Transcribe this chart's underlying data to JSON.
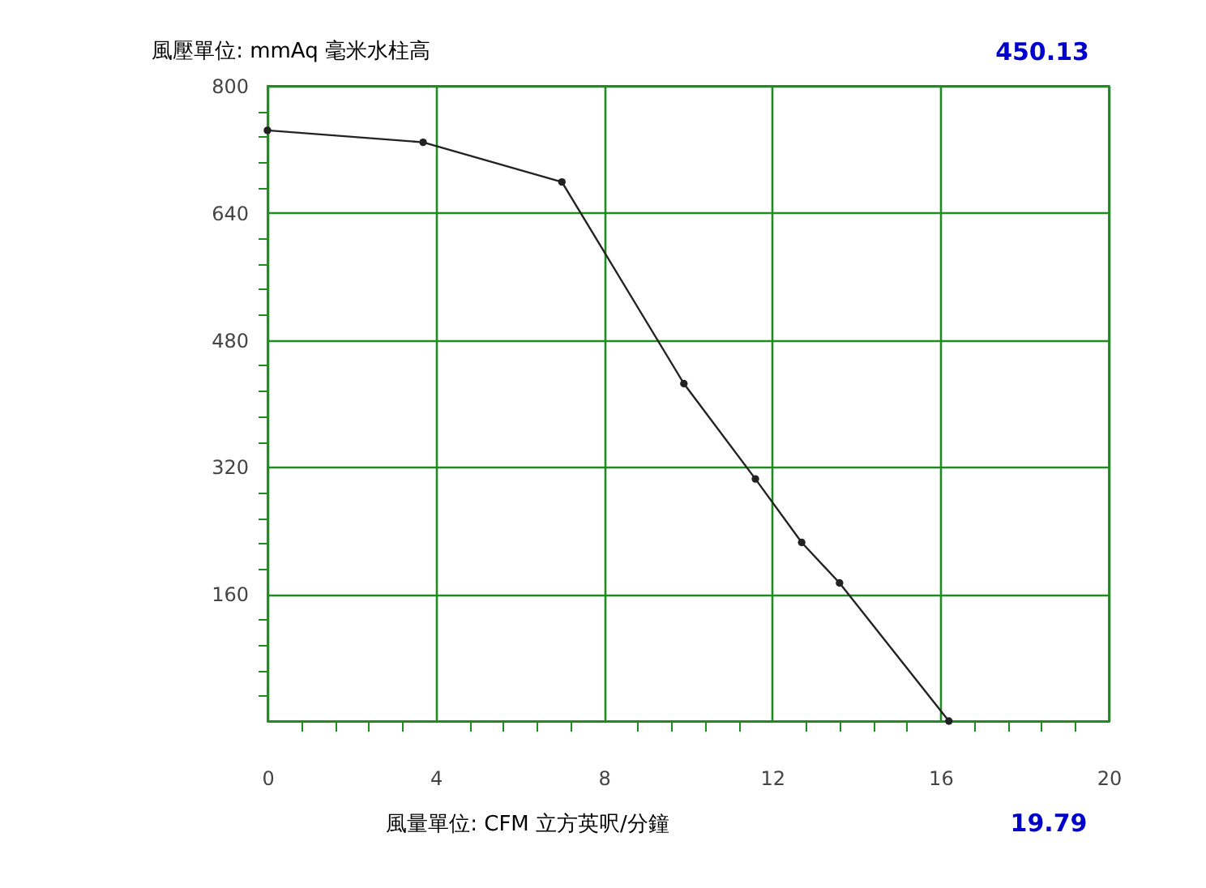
{
  "chart_data": {
    "type": "line",
    "xlabel": "風量單位: CFM 立方英呎/分鐘",
    "ylabel": "風壓單位: mmAq 毫米水柱高",
    "x": [
      0,
      3.7,
      7.0,
      9.9,
      11.6,
      12.7,
      13.6,
      16.2
    ],
    "series": [
      {
        "color": "#222222",
        "values": [
          744,
          729,
          679,
          425,
          305,
          225,
          174,
          0
        ]
      }
    ],
    "xlim": [
      0,
      20
    ],
    "ylim": [
      0,
      800
    ],
    "xticks": [
      0,
      {
        "value": 0.8,
        "label": null
      },
      {
        "value": 1.6,
        "label": null
      },
      {
        "value": 2.4,
        "label": null
      },
      {
        "value": 3.2,
        "label": null
      },
      4,
      {
        "value": 4.8,
        "label": null
      },
      {
        "value": 5.6,
        "label": null
      },
      {
        "value": 6.4,
        "label": null
      },
      {
        "value": 7.2,
        "label": null
      },
      8,
      {
        "value": 8.8,
        "label": null
      },
      {
        "value": 9.6,
        "label": null
      },
      {
        "value": 10.4,
        "label": null
      },
      {
        "value": 11.2,
        "label": null
      },
      12,
      {
        "value": 12.8,
        "label": null
      },
      {
        "value": 13.6,
        "label": null
      },
      {
        "value": 14.4,
        "label": null
      },
      {
        "value": 15.2,
        "label": null
      },
      16,
      {
        "value": 16.8,
        "label": null
      },
      {
        "value": 17.6,
        "label": null
      },
      {
        "value": 18.4,
        "label": null
      },
      {
        "value": 19.2,
        "label": null
      },
      20
    ],
    "yticks": [
      {
        "value": 32,
        "label": null
      },
      {
        "value": 64,
        "label": null
      },
      {
        "value": 96,
        "label": null
      },
      {
        "value": 128,
        "label": null
      },
      160,
      {
        "value": 192,
        "label": null
      },
      {
        "value": 224,
        "label": null
      },
      {
        "value": 256,
        "label": null
      },
      {
        "value": 288,
        "label": null
      },
      320,
      {
        "value": 352,
        "label": null
      },
      {
        "value": 384,
        "label": null
      },
      {
        "value": 416,
        "label": null
      },
      {
        "value": 448,
        "label": null
      },
      480,
      {
        "value": 512,
        "label": null
      },
      {
        "value": 544,
        "label": null
      },
      {
        "value": 576,
        "label": null
      },
      {
        "value": 608,
        "label": null
      },
      640,
      {
        "value": 672,
        "label": null
      },
      {
        "value": 704,
        "label": null
      },
      {
        "value": 736,
        "label": null
      },
      {
        "value": 768,
        "label": null
      },
      800
    ],
    "grid": true,
    "marker": "circle",
    "line_style": "solid",
    "annotations": [
      "450.13",
      "19.79"
    ]
  }
}
